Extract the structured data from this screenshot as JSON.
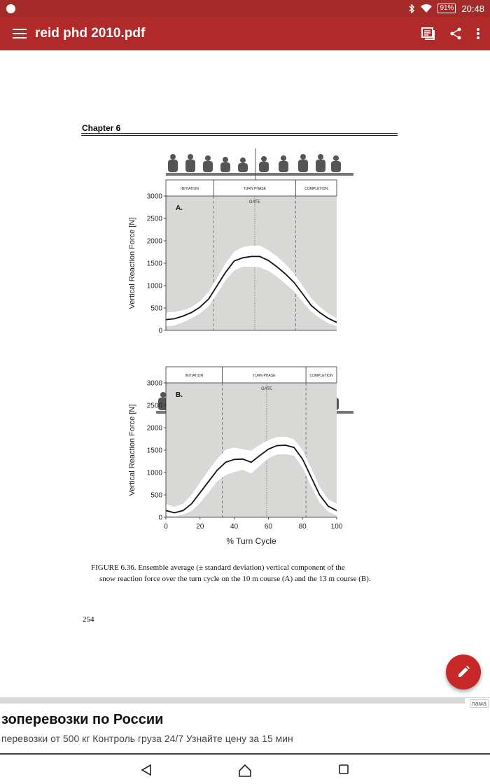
{
  "status_bar": {
    "time": "20:48",
    "battery": "91%",
    "icons": [
      "app-notification-icon",
      "bluetooth-icon",
      "wifi-icon",
      "battery-icon"
    ]
  },
  "app_bar": {
    "title": "reid phd 2010.pdf",
    "icons": [
      "menu-icon",
      "reader-mode-icon",
      "share-icon",
      "more-vert-icon"
    ]
  },
  "document": {
    "chapter": "Chapter 6",
    "figure_caption_lead": "FIGURE 6.36.  Ensemble average (± standard deviation) vertical component of the",
    "figure_caption_rest": "snow reaction force over the turn cycle on the 10 m course (A) and the 13 m course (B).",
    "page_number": "254"
  },
  "fab": {
    "icon": "edit-pencil-icon",
    "color": "#c62828"
  },
  "ad": {
    "headline": "зоперевозки по России",
    "text": "перевозки от 500 кг Контроль груза 24/7 Узнайте цену за 15 мин",
    "badge": "лама"
  },
  "nav_bar": {
    "icons": [
      "back-icon",
      "home-icon",
      "recents-icon"
    ]
  },
  "colors": {
    "status_bar": "#a52a2a",
    "app_bar": "#b12a2a",
    "accent": "#c62828"
  },
  "chart_data": [
    {
      "type": "line",
      "panel_label": "A.",
      "phases": [
        "INITIATION",
        "TURN PHASE",
        "COMPLETION"
      ],
      "phase_bounds": [
        28,
        76
      ],
      "gate_label": "GATE",
      "gate_x": 52,
      "ylabel": "Vertical Reaction Force  [N]",
      "ylim": [
        0,
        3000
      ],
      "yticks": [
        0,
        500,
        1000,
        1500,
        2000,
        2500,
        3000
      ],
      "xlim": [
        0,
        100
      ],
      "x": [
        0,
        5,
        10,
        15,
        20,
        25,
        30,
        35,
        40,
        45,
        50,
        55,
        60,
        65,
        70,
        75,
        80,
        85,
        90,
        95,
        100
      ],
      "mean": [
        240,
        260,
        320,
        400,
        520,
        700,
        1000,
        1300,
        1550,
        1620,
        1650,
        1650,
        1560,
        1420,
        1260,
        1070,
        820,
        560,
        400,
        270,
        180
      ],
      "upper": [
        400,
        410,
        450,
        520,
        650,
        860,
        1170,
        1500,
        1760,
        1860,
        1890,
        1890,
        1790,
        1650,
        1480,
        1270,
        1000,
        720,
        530,
        380,
        270
      ],
      "lower": [
        90,
        110,
        180,
        270,
        380,
        540,
        820,
        1120,
        1340,
        1420,
        1420,
        1410,
        1330,
        1200,
        1040,
        880,
        640,
        420,
        280,
        160,
        90
      ]
    },
    {
      "type": "line",
      "panel_label": "B.",
      "phases": [
        "INITIATION",
        "TURN PHASE",
        "COMPLETION"
      ],
      "phase_bounds": [
        33,
        82
      ],
      "gate_label": "GATE",
      "gate_x": 59,
      "ylabel": "Vertical Reaction Force  [N]",
      "xlabel": "% Turn Cycle",
      "ylim": [
        0,
        3000
      ],
      "yticks": [
        0,
        500,
        1000,
        1500,
        2000,
        2500,
        3000
      ],
      "xlim": [
        0,
        100
      ],
      "xticks": [
        0,
        20,
        40,
        60,
        80,
        100
      ],
      "x": [
        0,
        5,
        10,
        15,
        20,
        25,
        30,
        35,
        40,
        45,
        50,
        55,
        60,
        65,
        70,
        75,
        80,
        85,
        90,
        95,
        100
      ],
      "mean": [
        150,
        100,
        150,
        300,
        550,
        800,
        1050,
        1230,
        1290,
        1300,
        1230,
        1380,
        1520,
        1600,
        1610,
        1560,
        1300,
        900,
        500,
        250,
        150
      ],
      "upper": [
        300,
        230,
        300,
        500,
        780,
        1050,
        1300,
        1510,
        1560,
        1520,
        1490,
        1620,
        1720,
        1790,
        1800,
        1740,
        1500,
        1100,
        680,
        400,
        300
      ],
      "lower": [
        40,
        20,
        60,
        140,
        320,
        560,
        800,
        940,
        1010,
        1060,
        980,
        1150,
        1320,
        1400,
        1410,
        1380,
        1110,
        700,
        330,
        130,
        40
      ]
    }
  ]
}
